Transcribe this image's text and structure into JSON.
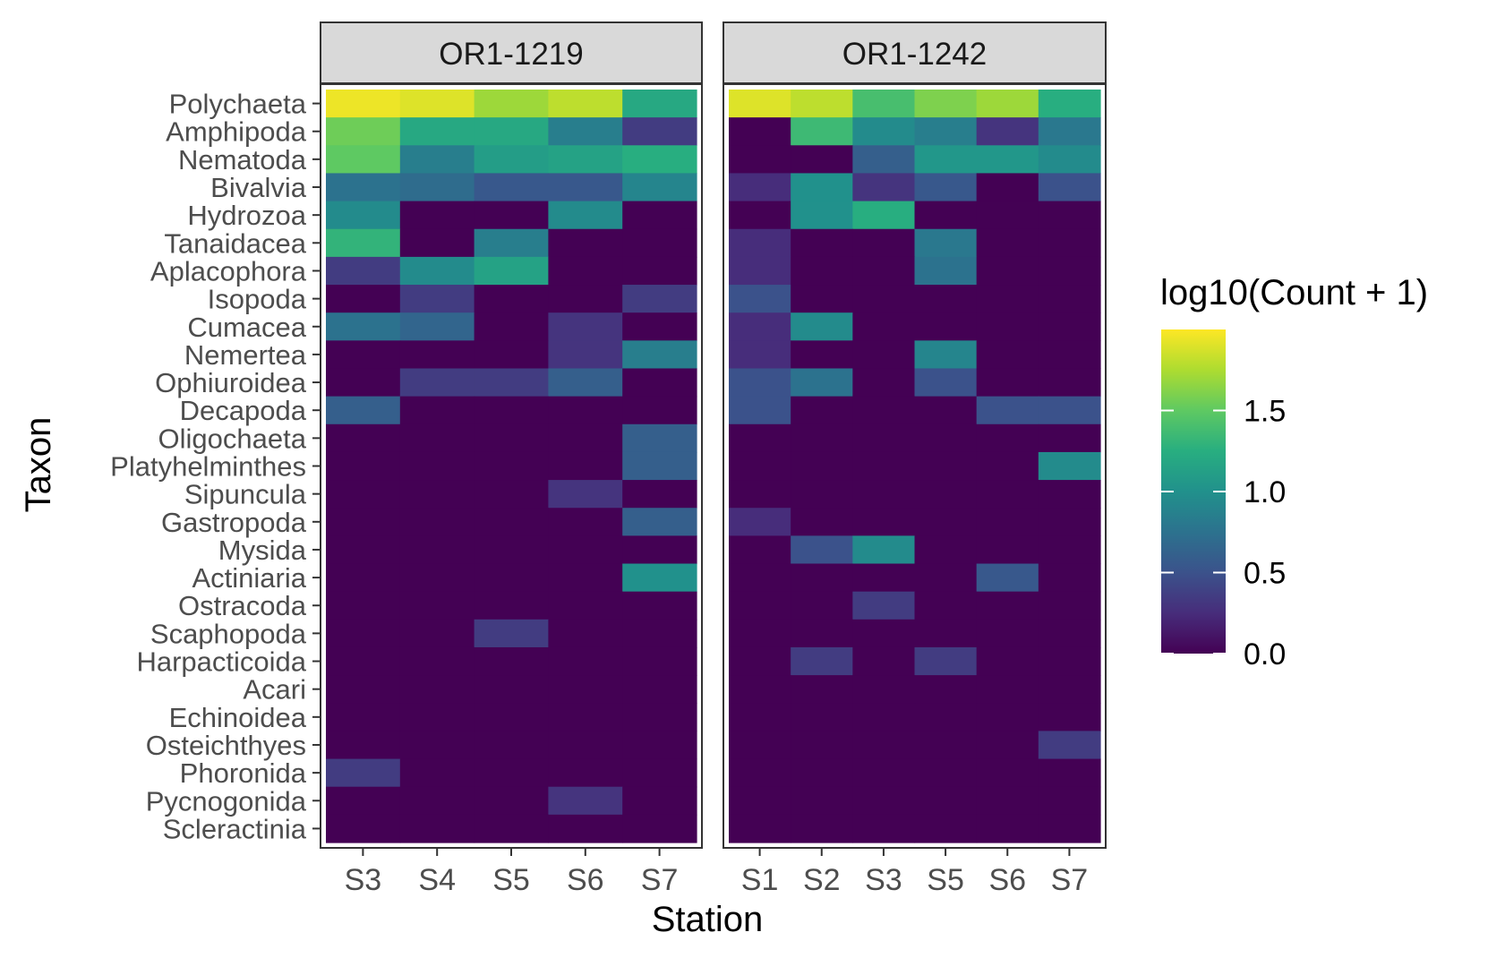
{
  "chart_data": {
    "type": "heatmap",
    "ylabel": "Taxon",
    "xlabel": "Station",
    "legend": {
      "title": "log10(Count + 1)",
      "position": "right",
      "ticks": [
        "0.0",
        "0.5",
        "1.0",
        "1.5"
      ],
      "range": [
        0,
        2
      ]
    },
    "taxa": [
      "Polychaeta",
      "Amphipoda",
      "Nematoda",
      "Bivalvia",
      "Hydrozoa",
      "Tanaidacea",
      "Aplacophora",
      "Isopoda",
      "Cumacea",
      "Nemertea",
      "Ophiuroidea",
      "Decapoda",
      "Oligochaeta",
      "Platyhelminthes",
      "Sipuncula",
      "Gastropoda",
      "Mysida",
      "Actiniaria",
      "Ostracoda",
      "Scaphopoda",
      "Harpacticoida",
      "Acari",
      "Echinoidea",
      "Osteichthyes",
      "Phoronida",
      "Pycnogonida",
      "Scleractinia"
    ],
    "panels": [
      {
        "title": "OR1-1219",
        "stations": [
          "S3",
          "S4",
          "S5",
          "S6",
          "S7"
        ],
        "values": [
          [
            1.95,
            1.9,
            1.7,
            1.8,
            1.2
          ],
          [
            1.55,
            1.2,
            1.2,
            0.85,
            0.35
          ],
          [
            1.5,
            0.85,
            1.1,
            1.15,
            1.25
          ],
          [
            0.75,
            0.7,
            0.55,
            0.55,
            0.9
          ],
          [
            0.95,
            0,
            0,
            0.95,
            0
          ],
          [
            1.3,
            0,
            0.85,
            0,
            0
          ],
          [
            0.35,
            0.95,
            1.15,
            0,
            0
          ],
          [
            0,
            0.35,
            0,
            0,
            0.35
          ],
          [
            0.75,
            0.65,
            0,
            0.3,
            0
          ],
          [
            0,
            0,
            0,
            0.3,
            0.85
          ],
          [
            0,
            0.35,
            0.35,
            0.6,
            0
          ],
          [
            0.6,
            0,
            0,
            0,
            0
          ],
          [
            0,
            0,
            0,
            0,
            0.6
          ],
          [
            0,
            0,
            0,
            0,
            0.6
          ],
          [
            0,
            0,
            0,
            0.3,
            0
          ],
          [
            0,
            0,
            0,
            0,
            0.6
          ],
          [
            0,
            0,
            0,
            0,
            0
          ],
          [
            0,
            0,
            0,
            0,
            1.0
          ],
          [
            0,
            0,
            0,
            0,
            0
          ],
          [
            0,
            0,
            0.35,
            0,
            0
          ],
          [
            0,
            0,
            0,
            0,
            0
          ],
          [
            0,
            0,
            0,
            0,
            0
          ],
          [
            0,
            0,
            0,
            0,
            0
          ],
          [
            0,
            0,
            0,
            0,
            0
          ],
          [
            0.35,
            0,
            0,
            0,
            0
          ],
          [
            0,
            0,
            0,
            0.3,
            0
          ],
          [
            0,
            0,
            0,
            0,
            0
          ]
        ]
      },
      {
        "title": "OR1-1242",
        "stations": [
          "S1",
          "S2",
          "S3",
          "S5",
          "S6",
          "S7"
        ],
        "values": [
          [
            1.9,
            1.8,
            1.4,
            1.6,
            1.7,
            1.25
          ],
          [
            0,
            1.35,
            0.95,
            0.85,
            0.3,
            0.8
          ],
          [
            0,
            0,
            0.6,
            1.05,
            1.05,
            0.95
          ],
          [
            0.25,
            1.0,
            0.3,
            0.55,
            0,
            0.5
          ],
          [
            0,
            1.0,
            1.25,
            0,
            0,
            0
          ],
          [
            0.25,
            0,
            0,
            0.8,
            0,
            0
          ],
          [
            0.25,
            0,
            0,
            0.75,
            0,
            0
          ],
          [
            0.5,
            0,
            0,
            0,
            0,
            0
          ],
          [
            0.25,
            0.95,
            0,
            0,
            0,
            0
          ],
          [
            0.25,
            0,
            0,
            0.9,
            0,
            0
          ],
          [
            0.5,
            0.75,
            0,
            0.5,
            0,
            0
          ],
          [
            0.5,
            0,
            0,
            0,
            0.5,
            0.5
          ],
          [
            0,
            0,
            0,
            0,
            0,
            0
          ],
          [
            0,
            0,
            0,
            0,
            0,
            0.95
          ],
          [
            0,
            0,
            0,
            0,
            0,
            0
          ],
          [
            0.25,
            0,
            0,
            0,
            0,
            0
          ],
          [
            0,
            0.5,
            0.95,
            0,
            0,
            0
          ],
          [
            0,
            0,
            0,
            0,
            0.55,
            0
          ],
          [
            0,
            0,
            0.35,
            0,
            0,
            0
          ],
          [
            0,
            0,
            0,
            0,
            0,
            0
          ],
          [
            0,
            0.35,
            0,
            0.35,
            0,
            0
          ],
          [
            0,
            0,
            0,
            0,
            0,
            0
          ],
          [
            0,
            0,
            0,
            0,
            0,
            0
          ],
          [
            0,
            0,
            0,
            0,
            0,
            0.35
          ],
          [
            0,
            0,
            0,
            0,
            0,
            0
          ],
          [
            0,
            0,
            0,
            0,
            0,
            0
          ],
          [
            0,
            0,
            0,
            0,
            0,
            0
          ]
        ]
      }
    ]
  }
}
